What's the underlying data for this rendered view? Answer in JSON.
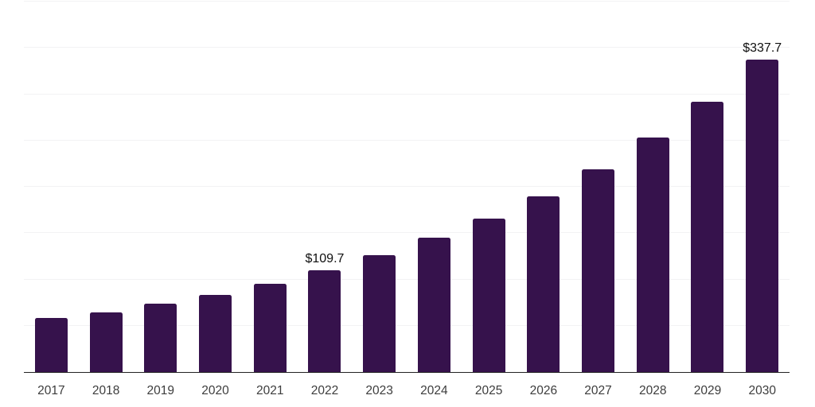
{
  "chart_data": {
    "type": "bar",
    "title": "",
    "xlabel": "",
    "ylabel": "",
    "categories": [
      "2017",
      "2018",
      "2019",
      "2020",
      "2021",
      "2022",
      "2023",
      "2024",
      "2025",
      "2026",
      "2027",
      "2028",
      "2029",
      "2030"
    ],
    "values": [
      58,
      64,
      74,
      83,
      95,
      109.7,
      126,
      145,
      166,
      190,
      219,
      253,
      292,
      337.7
    ],
    "value_labels": {
      "2022": "$109.7",
      "2030": "$337.7"
    },
    "ylim": [
      0,
      400
    ],
    "grid_step": 50,
    "grid": "horizontal gridlines, no y-axis tick labels",
    "legend_position": "none",
    "colors": {
      "bar": "#36124c",
      "axis_line": "#222222",
      "gridline": "#f2f2f4",
      "tick_label": "#3d3d3d",
      "value_label": "#0f0f0f",
      "background": "#ffffff"
    }
  }
}
